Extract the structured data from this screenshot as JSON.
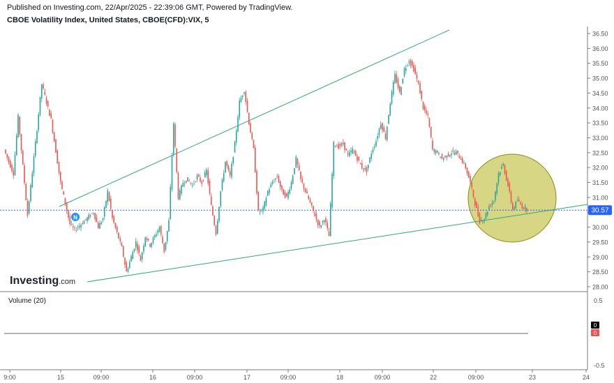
{
  "header": {
    "published": "Published on Investing.com, 22/Apr/2025 - 22:39:06 GMT, Powered by TradingView.",
    "title": "CBOE Volatility Index, United States, CBOE(CFD):VIX, 5"
  },
  "logo": {
    "brand": "Investing",
    "suffix": ".com"
  },
  "event_marker": {
    "label": "N"
  },
  "volume_pane": {
    "label": "Volume (20)",
    "y_ticks": [
      "0.5",
      "-0.5"
    ],
    "badges": [
      {
        "text": "0",
        "color": "#000000"
      },
      {
        "text": "0",
        "color": "#ef5350"
      }
    ]
  },
  "colors": {
    "up": "#26a69a",
    "down": "#ef5350",
    "trendline": "#2eaa72",
    "price_line": "#2962ff",
    "highlight_fill": "#b5b420",
    "highlight_stroke": "#8a8a14"
  },
  "chart_data": {
    "type": "candlestick",
    "title": "CBOE Volatility Index, United States, CBOE(CFD):VIX, 5",
    "current_price": 30.57,
    "current_price_label": "30.57",
    "ylim": [
      27.75,
      36.6
    ],
    "y_ticks": [
      "28.00",
      "28.50",
      "29.00",
      "29.50",
      "30.00",
      "30.50",
      "31.00",
      "31.50",
      "32.00",
      "32.50",
      "33.00",
      "33.50",
      "34.00",
      "34.50",
      "35.00",
      "35.50",
      "36.00",
      "36.50"
    ],
    "x_ticks": [
      "9:00",
      "15",
      "09:00",
      "16",
      "09:00",
      "17",
      "09:00",
      "18",
      "09:00",
      "22",
      "09:00",
      "23",
      "24"
    ],
    "grid": false,
    "series": [
      {
        "x": 0,
        "v": 32.6
      },
      {
        "x": 2,
        "v": 31.8
      },
      {
        "x": 3,
        "v": 33.7
      },
      {
        "x": 5,
        "v": 30.4
      },
      {
        "x": 7,
        "v": 33.3
      },
      {
        "x": 8,
        "v": 34.8
      },
      {
        "x": 10,
        "v": 33.6
      },
      {
        "x": 12,
        "v": 31.5
      },
      {
        "x": 14,
        "v": 30.1
      },
      {
        "x": 15,
        "v": 29.9
      },
      {
        "x": 17,
        "v": 30.2
      },
      {
        "x": 19,
        "v": 30.5
      },
      {
        "x": 20,
        "v": 30.0
      },
      {
        "x": 21,
        "v": 30.3
      },
      {
        "x": 22,
        "v": 31.2
      },
      {
        "x": 23,
        "v": 30.3
      },
      {
        "x": 25,
        "v": 29.3
      },
      {
        "x": 26,
        "v": 28.5
      },
      {
        "x": 27,
        "v": 29.0
      },
      {
        "x": 28,
        "v": 29.5
      },
      {
        "x": 29,
        "v": 28.9
      },
      {
        "x": 30,
        "v": 29.7
      },
      {
        "x": 31,
        "v": 29.4
      },
      {
        "x": 33,
        "v": 30.0
      },
      {
        "x": 34,
        "v": 29.2
      },
      {
        "x": 35,
        "v": 30.2
      },
      {
        "x": 36,
        "v": 33.5
      },
      {
        "x": 37,
        "v": 31.0
      },
      {
        "x": 38,
        "v": 31.5
      },
      {
        "x": 39,
        "v": 31.6
      },
      {
        "x": 40,
        "v": 31.4
      },
      {
        "x": 41,
        "v": 31.7
      },
      {
        "x": 42,
        "v": 31.5
      },
      {
        "x": 43,
        "v": 31.9
      },
      {
        "x": 44,
        "v": 30.7
      },
      {
        "x": 45,
        "v": 29.8
      },
      {
        "x": 46,
        "v": 31.2
      },
      {
        "x": 47,
        "v": 32.2
      },
      {
        "x": 48,
        "v": 31.7
      },
      {
        "x": 49,
        "v": 32.8
      },
      {
        "x": 50,
        "v": 34.2
      },
      {
        "x": 51,
        "v": 34.6
      },
      {
        "x": 52,
        "v": 33.5
      },
      {
        "x": 53,
        "v": 32.6
      },
      {
        "x": 54,
        "v": 30.5
      },
      {
        "x": 55,
        "v": 30.6
      },
      {
        "x": 56,
        "v": 31.2
      },
      {
        "x": 57,
        "v": 31.5
      },
      {
        "x": 58,
        "v": 31.7
      },
      {
        "x": 59,
        "v": 31.2
      },
      {
        "x": 60,
        "v": 31.0
      },
      {
        "x": 61,
        "v": 31.5
      },
      {
        "x": 62,
        "v": 32.3
      },
      {
        "x": 63,
        "v": 31.6
      },
      {
        "x": 64,
        "v": 31.2
      },
      {
        "x": 65,
        "v": 30.8
      },
      {
        "x": 66,
        "v": 30.4
      },
      {
        "x": 67,
        "v": 30.0
      },
      {
        "x": 68,
        "v": 30.3
      },
      {
        "x": 69,
        "v": 29.7
      },
      {
        "x": 70,
        "v": 32.8
      },
      {
        "x": 71,
        "v": 32.7
      },
      {
        "x": 72,
        "v": 32.8
      },
      {
        "x": 73,
        "v": 32.4
      },
      {
        "x": 74,
        "v": 32.6
      },
      {
        "x": 75,
        "v": 32.3
      },
      {
        "x": 76,
        "v": 32.0
      },
      {
        "x": 77,
        "v": 31.9
      },
      {
        "x": 78,
        "v": 32.5
      },
      {
        "x": 79,
        "v": 32.9
      },
      {
        "x": 80,
        "v": 33.5
      },
      {
        "x": 81,
        "v": 33.0
      },
      {
        "x": 82,
        "v": 34.2
      },
      {
        "x": 83,
        "v": 35.1
      },
      {
        "x": 84,
        "v": 34.5
      },
      {
        "x": 85,
        "v": 35.3
      },
      {
        "x": 86,
        "v": 35.6
      },
      {
        "x": 87,
        "v": 35.3
      },
      {
        "x": 88,
        "v": 34.8
      },
      {
        "x": 89,
        "v": 34.0
      },
      {
        "x": 90,
        "v": 33.7
      },
      {
        "x": 91,
        "v": 32.6
      },
      {
        "x": 92,
        "v": 32.5
      },
      {
        "x": 93,
        "v": 32.3
      },
      {
        "x": 94,
        "v": 32.4
      },
      {
        "x": 95,
        "v": 32.5
      },
      {
        "x": 96,
        "v": 32.5
      },
      {
        "x": 97,
        "v": 32.3
      },
      {
        "x": 98,
        "v": 32.0
      },
      {
        "x": 99,
        "v": 31.5
      },
      {
        "x": 100,
        "v": 30.8
      },
      {
        "x": 101,
        "v": 30.2
      },
      {
        "x": 102,
        "v": 30.3
      },
      {
        "x": 103,
        "v": 30.7
      },
      {
        "x": 104,
        "v": 30.9
      },
      {
        "x": 105,
        "v": 31.8
      },
      {
        "x": 106,
        "v": 32.1
      },
      {
        "x": 107,
        "v": 31.4
      },
      {
        "x": 108,
        "v": 30.6
      },
      {
        "x": 109,
        "v": 30.9
      },
      {
        "x": 110,
        "v": 30.7
      },
      {
        "x": 111,
        "v": 30.6
      }
    ]
  }
}
